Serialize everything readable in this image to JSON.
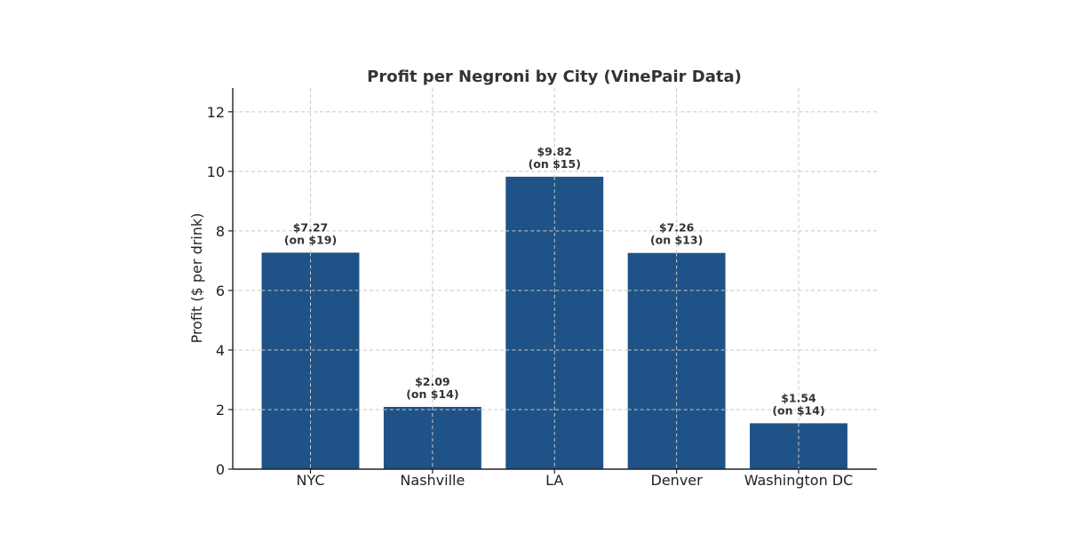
{
  "chart_data": {
    "type": "bar",
    "title": "Profit per Negroni by City (VinePair Data)",
    "xlabel": "",
    "ylabel": "Profit ($ per drink)",
    "categories": [
      "NYC",
      "Nashville",
      "LA",
      "Denver",
      "Washington DC"
    ],
    "values": [
      7.27,
      2.09,
      9.82,
      7.26,
      1.54
    ],
    "value_labels": [
      "$7.27",
      "$2.09",
      "$9.82",
      "$7.26",
      "$1.54"
    ],
    "price_labels": [
      "(on $19)",
      "(on $14)",
      "(on $15)",
      "(on $13)",
      "(on $14)"
    ],
    "ylim": [
      0,
      12.8
    ],
    "yticks": [
      0,
      2,
      4,
      6,
      8,
      10,
      12
    ],
    "grid": true,
    "legend": "none",
    "bar_color": "#1f5286"
  }
}
